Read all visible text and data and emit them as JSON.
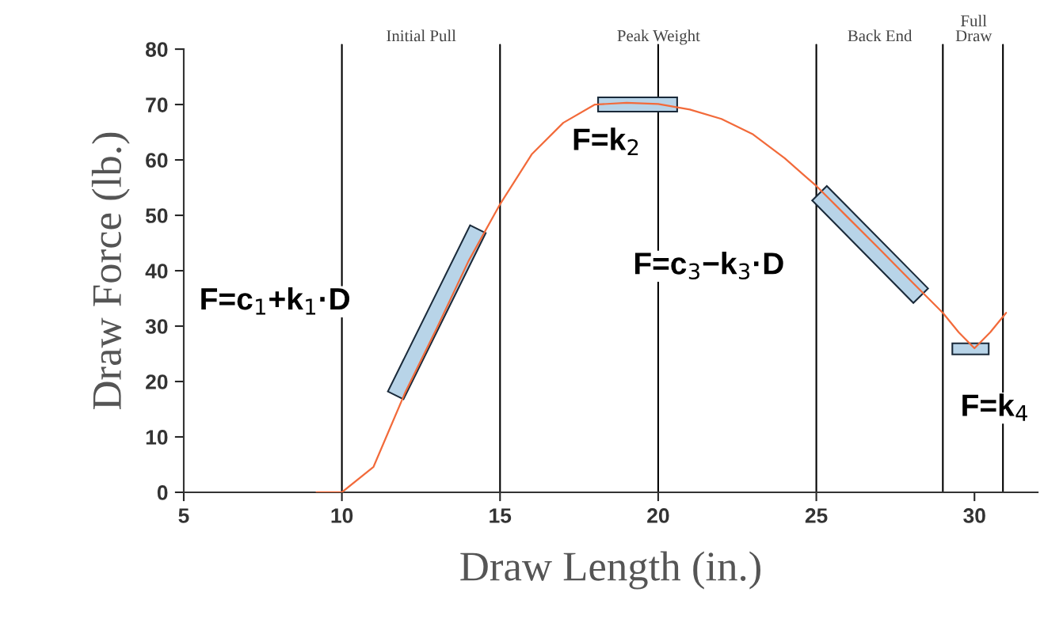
{
  "chart_data": {
    "type": "line",
    "xlabel": "Draw Length (in.)",
    "ylabel": "Draw Force (lb.)",
    "xlim": [
      5,
      32
    ],
    "xticks": [
      5,
      10,
      15,
      20,
      25,
      30
    ],
    "ylim": [
      0,
      80
    ],
    "yticks": [
      0,
      10,
      20,
      30,
      40,
      50,
      60,
      70,
      80
    ],
    "grid": false,
    "legend": false,
    "marker": "none",
    "line_style": "solid",
    "series": [
      {
        "color": "#f26a3a",
        "x": [
          9.2,
          10,
          11,
          12,
          13,
          14,
          15,
          16,
          17,
          18,
          19,
          20,
          21,
          22,
          23,
          24,
          25,
          26,
          27,
          28,
          29,
          29.5,
          30,
          30.5,
          31
        ],
        "values": [
          0,
          0,
          4.6,
          18,
          29.6,
          41.7,
          52,
          61,
          66.7,
          70,
          70.3,
          70.1,
          69.1,
          67.4,
          64.6,
          60.3,
          55.3,
          49.6,
          43.9,
          38.1,
          32.4,
          28.9,
          26,
          28.9,
          32.4
        ]
      }
    ],
    "ref_lines": [
      {
        "axis": "x",
        "value": 10,
        "color": "#000000"
      },
      {
        "axis": "x",
        "value": 15,
        "color": "#000000"
      },
      {
        "axis": "x",
        "value": 20,
        "color": "#000000"
      },
      {
        "axis": "x",
        "value": 25,
        "color": "#000000"
      },
      {
        "axis": "x",
        "value": 29,
        "color": "#000000"
      },
      {
        "axis": "x",
        "value": 30.9,
        "color": "#000000"
      }
    ],
    "annotations": [
      "Initial Pull",
      "Peak Weight",
      "Back End",
      "Full\nDraw",
      "F=c$_{1}$+k$_{1}$·D",
      "F=k$_{2}$",
      "F=c$_{3}$−k$_{3}$·D",
      "F=k$_{4}$"
    ]
  }
}
